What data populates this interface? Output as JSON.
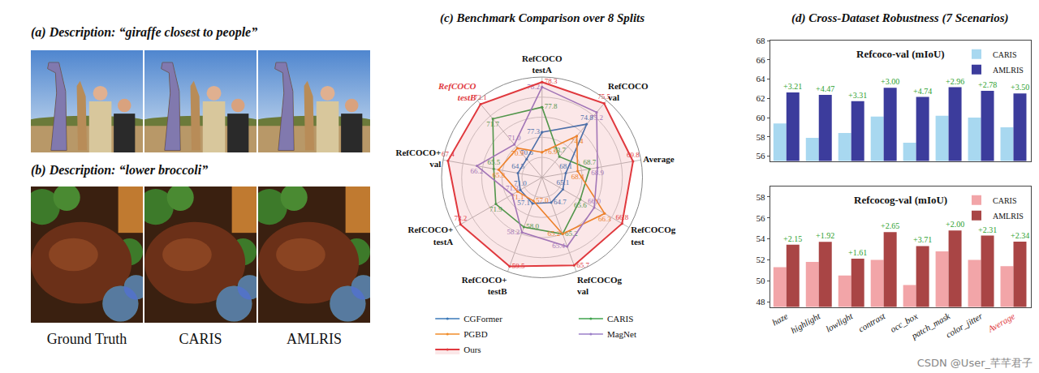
{
  "image_panels": {
    "rows": [
      {
        "caption": "(a) Description: “giraffe closest to people”"
      },
      {
        "caption": "(b) Description: “lower broccoli”"
      }
    ],
    "columns": [
      "Ground Truth",
      "CARIS",
      "AMLRIS"
    ]
  },
  "group_title": "(d) Cross-Dataset Robustness (7 Scenarios)",
  "watermark": "CSDN @User_芊芊君子",
  "chart_data": [
    {
      "type": "radar",
      "title": "(c) Benchmark Comparison over 8 Splits",
      "categories": [
        "RefCOCO testA",
        "RefCOCO val",
        "Average",
        "RefCOCOg test",
        "RefCOCOg val",
        "RefCOCO+ testB",
        "RefCOCO+ testA",
        "RefCOCO+ val",
        "RefCOCO testB"
      ],
      "axis_ranges": [
        [
          76.4,
          78.4
        ],
        [
          73.0,
          75.6
        ],
        [
          67.5,
          70.0
        ],
        [
          64.5,
          67.0
        ],
        [
          64.3,
          65.8
        ],
        [
          56.1,
          59.7
        ],
        [
          70.2,
          73.4
        ],
        [
          63.5,
          67.6
        ],
        [
          70.1,
          72.2
        ]
      ],
      "grid": true,
      "data_labels": true,
      "legend": "bottom",
      "series": [
        {
          "name": "CGFormer",
          "color": "#3a78b8",
          "values": [
            77.3,
            74.8,
            68.1,
            65.1,
            64.7,
            57.1,
            71.0,
            64.5,
            70.6
          ]
        },
        {
          "name": "CARIS",
          "color": "#3fa34d",
          "values": [
            77.8,
            73.7,
            68.7,
            65.6,
            65.2,
            58.0,
            71.9,
            65.5,
            71.7
          ]
        },
        {
          "name": "PGBD",
          "color": "#f08c2a",
          "values": [
            76.9,
            74.4,
            68.4,
            66.3,
            65.2,
            57.0,
            71.1,
            65.3,
            70.9
          ]
        },
        {
          "name": "MagNet",
          "color": "#9b7fc8",
          "values": [
            78.2,
            75.2,
            68.9,
            66.0,
            65.4,
            58.2,
            71.3,
            66.2,
            71.0
          ]
        },
        {
          "name": "Ours",
          "color": "#e0393e",
          "values": [
            78.3,
            75.5,
            69.8,
            66.8,
            65.7,
            59.5,
            73.2,
            67.4,
            72.1
          ]
        }
      ]
    },
    {
      "type": "bar",
      "title": "Refcoco-val (mIoU)",
      "categories": [
        "haze",
        "highlight",
        "lowlight",
        "contrast",
        "occ_box",
        "patch_mask",
        "color_jitter",
        "Average"
      ],
      "series": [
        {
          "name": "CARIS",
          "color": "#a8d8f0",
          "values": [
            59.4,
            57.9,
            58.4,
            60.1,
            57.4,
            60.2,
            60.0,
            59.0
          ]
        },
        {
          "name": "AMLRIS",
          "color": "#3c3c9c",
          "values": [
            62.61,
            62.37,
            61.71,
            63.1,
            62.14,
            63.16,
            62.78,
            62.5
          ]
        }
      ],
      "ylim": [
        55.5,
        68
      ],
      "yticks": [
        56,
        58,
        60,
        62,
        64,
        66,
        68
      ],
      "grid": false,
      "legend": "upper right",
      "tick_labels": "y",
      "annotations": [
        {
          "category": "haze",
          "text": "+3.21"
        },
        {
          "category": "highlight",
          "text": "+4.47"
        },
        {
          "category": "lowlight",
          "text": "+3.31"
        },
        {
          "category": "contrast",
          "text": "+3.00"
        },
        {
          "category": "occ_box",
          "text": "+4.74"
        },
        {
          "category": "patch_mask",
          "text": "+2.96"
        },
        {
          "category": "color_jitter",
          "text": "+2.78"
        },
        {
          "category": "Average",
          "text": "+3.50"
        }
      ]
    },
    {
      "type": "bar",
      "title": "Refcocog-val (mIoU)",
      "categories": [
        "haze",
        "highlight",
        "lowlight",
        "contrast",
        "occ_box",
        "patch_mask",
        "color_jitter",
        "Average"
      ],
      "series": [
        {
          "name": "CARIS",
          "color": "#f2a5a8",
          "values": [
            51.3,
            51.8,
            50.5,
            52.0,
            49.6,
            52.8,
            52.0,
            51.4
          ]
        },
        {
          "name": "AMLRIS",
          "color": "#a94545",
          "values": [
            53.45,
            53.72,
            52.11,
            54.65,
            53.31,
            54.8,
            54.31,
            53.74
          ]
        }
      ],
      "ylim": [
        47.5,
        59
      ],
      "yticks": [
        48,
        50,
        52,
        54,
        56,
        58
      ],
      "grid": false,
      "legend": "upper right",
      "annotations": [
        {
          "category": "haze",
          "text": "+2.15"
        },
        {
          "category": "highlight",
          "text": "+1.92"
        },
        {
          "category": "lowlight",
          "text": "+1.61"
        },
        {
          "category": "contrast",
          "text": "+2.65"
        },
        {
          "category": "occ_box",
          "text": "+3.71"
        },
        {
          "category": "patch_mask",
          "text": "+2.00"
        },
        {
          "category": "color_jitter",
          "text": "+2.31"
        },
        {
          "category": "Average",
          "text": "+2.34"
        }
      ]
    }
  ]
}
